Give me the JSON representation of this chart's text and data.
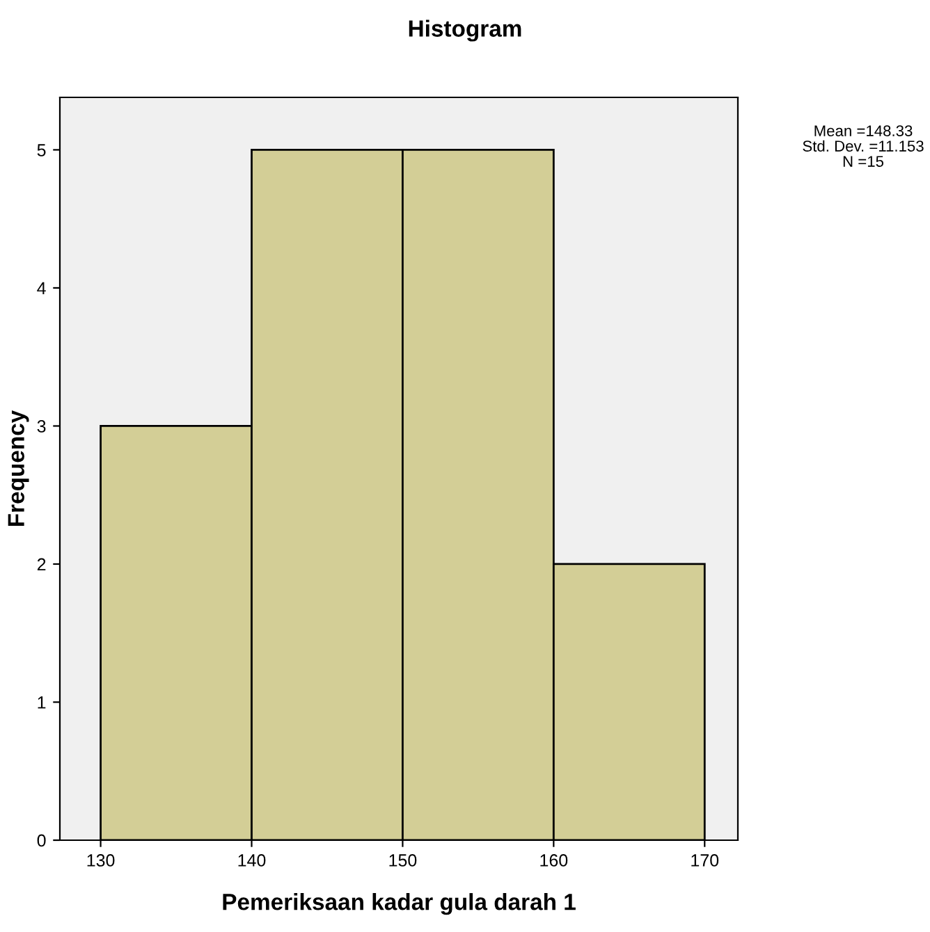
{
  "chart_data": {
    "type": "histogram",
    "title": "Histogram",
    "xlabel": "Pemeriksaan kadar gula darah 1",
    "ylabel": "Frequency",
    "bins": [
      130,
      140,
      150,
      160,
      170
    ],
    "values": [
      3,
      5,
      5,
      2
    ],
    "color": "#d3ce96",
    "xlim": [
      127.3,
      172.2
    ],
    "xticks": [
      130,
      140,
      150,
      160,
      170
    ],
    "ylim": [
      0,
      5.38
    ],
    "yticks": [
      0,
      1,
      2,
      3,
      4,
      5
    ],
    "annotations": [
      "Mean =148.33",
      "Std. Dev. =11.153",
      "N =15"
    ],
    "grid": false,
    "legend": false
  }
}
